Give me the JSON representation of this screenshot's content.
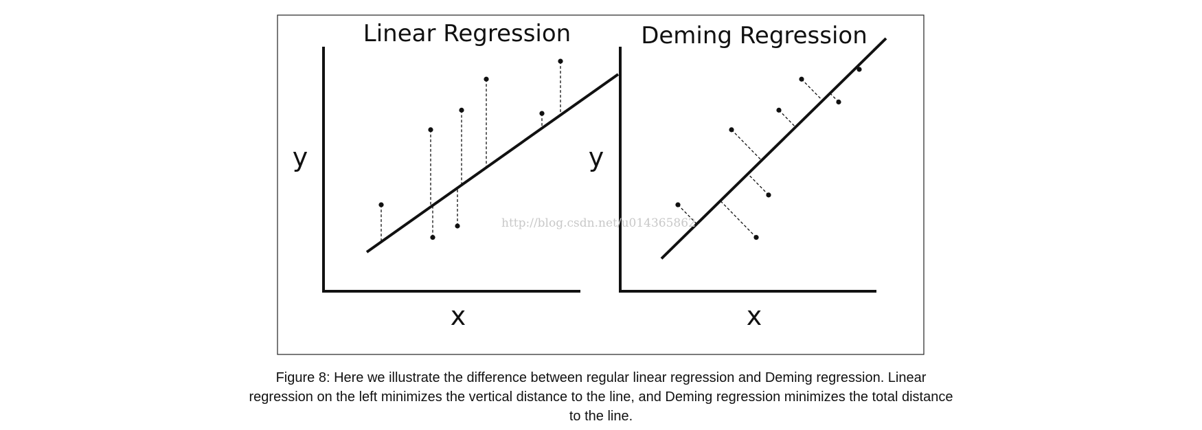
{
  "figure": {
    "watermark": "http://blog.csdn.net/u014365862",
    "colors": {
      "ink": "#111111",
      "frame": "#222222",
      "watermark": "#c8c8c8"
    },
    "panels": [
      {
        "title": "Linear Regression",
        "xlabel": "x",
        "ylabel": "y",
        "residuals": "vertical",
        "line": {
          "x": [
            1.05,
            7.15
          ],
          "y": [
            1.2,
            6.65
          ]
        },
        "points": [
          {
            "x": 1.4,
            "y": 2.65
          },
          {
            "x": 2.6,
            "y": 4.95
          },
          {
            "x": 2.65,
            "y": 1.65
          },
          {
            "x": 3.25,
            "y": 2.0
          },
          {
            "x": 3.35,
            "y": 5.55
          },
          {
            "x": 3.95,
            "y": 6.5
          },
          {
            "x": 5.3,
            "y": 5.45
          },
          {
            "x": 5.75,
            "y": 7.05
          }
        ]
      },
      {
        "title": "Deming Regression",
        "xlabel": "x",
        "ylabel": "y",
        "residuals": "orthogonal",
        "line": {
          "x": [
            1.0,
            6.45
          ],
          "y": [
            1.0,
            7.75
          ]
        },
        "points": [
          {
            "x": 1.4,
            "y": 2.65
          },
          {
            "x": 2.7,
            "y": 4.95
          },
          {
            "x": 3.3,
            "y": 1.65
          },
          {
            "x": 3.6,
            "y": 2.95
          },
          {
            "x": 3.85,
            "y": 5.55
          },
          {
            "x": 4.4,
            "y": 6.5
          },
          {
            "x": 5.3,
            "y": 5.8
          },
          {
            "x": 5.8,
            "y": 6.8
          }
        ]
      }
    ]
  },
  "caption": {
    "line1": "Figure 8: Here we illustrate the difference between regular linear regression and Deming regression. Linear",
    "line2": "regression on the left minimizes the vertical distance to the line, and Deming regression minimizes the total distance",
    "line3": "to the line."
  }
}
